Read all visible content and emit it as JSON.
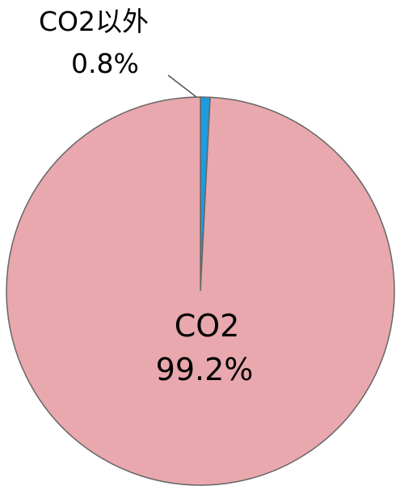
{
  "chart_data": {
    "type": "pie",
    "slices": [
      {
        "label": "CO2以外",
        "value": 0.8,
        "value_label": "0.8%",
        "color": "#1f9be0"
      },
      {
        "label": "CO2",
        "value": 99.2,
        "value_label": "99.2%",
        "color": "#e8a8ad"
      }
    ],
    "start_angle": "12 o'clock, clockwise",
    "legend": "none",
    "outline_color": "#666666"
  }
}
